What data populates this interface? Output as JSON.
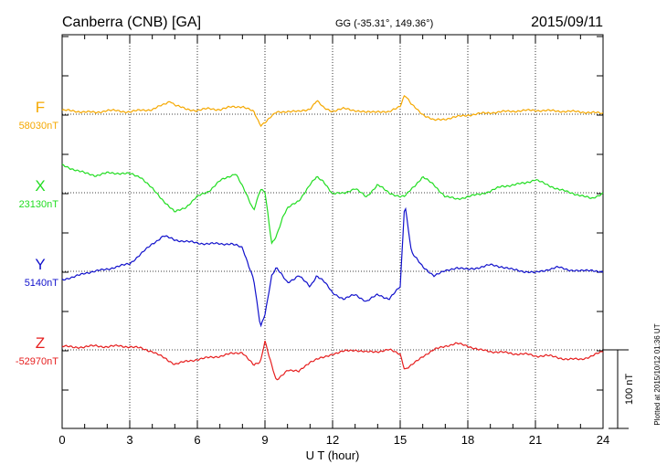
{
  "header": {
    "station": "Canberra (CNB)  [GA]",
    "coords": "GG (-35.31°, 149.36°)",
    "date": "2015/09/11"
  },
  "plotted_note": "Plotted at 2015/10/12 01:36 UT",
  "scale_label": "100 nT",
  "chart_data": {
    "type": "line",
    "xlabel": "U T (hour)",
    "xlim": [
      0,
      24
    ],
    "x_ticks": [
      "0",
      "3",
      "6",
      "9",
      "12",
      "15",
      "18",
      "21",
      "24"
    ],
    "y_unit": "nT",
    "grid": true,
    "series": [
      {
        "name": "F",
        "baseline_label": "58030nT",
        "baseline": 58030,
        "color": "#f5a800",
        "x": [
          0,
          0.5,
          1,
          1.5,
          2,
          2.5,
          3,
          3.5,
          4,
          4.5,
          4.8,
          5,
          5.5,
          6,
          6.5,
          7,
          7.5,
          8,
          8.5,
          8.8,
          9,
          9.5,
          10,
          10.5,
          11,
          11.3,
          11.6,
          12,
          12.5,
          13,
          13.5,
          14,
          14.5,
          15,
          15.2,
          15.5,
          16,
          16.5,
          17,
          18,
          19,
          20,
          21,
          22,
          23,
          24
        ],
        "values": [
          5,
          4,
          3,
          2,
          5,
          4,
          3,
          5,
          6,
          12,
          17,
          12,
          6,
          5,
          7,
          6,
          9,
          10,
          3,
          -14,
          -10,
          2,
          4,
          3,
          7,
          17,
          8,
          4,
          7,
          5,
          2,
          4,
          2,
          11,
          25,
          12,
          0,
          -8,
          -6,
          -1,
          2,
          4,
          5,
          4,
          3,
          1
        ]
      },
      {
        "name": "X",
        "baseline_label": "23130nT",
        "baseline": 23130,
        "color": "#22dd22",
        "x": [
          0,
          0.5,
          1,
          1.5,
          2,
          2.5,
          3,
          3.5,
          4,
          4.5,
          5,
          5.5,
          6,
          6.5,
          7,
          7.5,
          7.7,
          8,
          8.5,
          8.8,
          9,
          9.3,
          9.5,
          9.8,
          10,
          10.5,
          11,
          11.3,
          11.6,
          12,
          12.5,
          13,
          13.5,
          14,
          14.5,
          15,
          15.2,
          15.5,
          16,
          16.5,
          17,
          17.5,
          18,
          18.5,
          19,
          19.5,
          20,
          20.5,
          21,
          21.5,
          22,
          22.5,
          23,
          23.5,
          24
        ],
        "values": [
          35,
          30,
          25,
          22,
          25,
          25,
          24,
          20,
          5,
          -10,
          -25,
          -18,
          -5,
          2,
          15,
          22,
          25,
          8,
          -22,
          5,
          0,
          -65,
          -55,
          -30,
          -20,
          -10,
          10,
          20,
          15,
          -2,
          0,
          5,
          -5,
          10,
          0,
          -5,
          -5,
          5,
          20,
          10,
          -5,
          -8,
          -5,
          -2,
          2,
          8,
          10,
          12,
          17,
          10,
          5,
          0,
          -3,
          -8,
          0
        ]
      },
      {
        "name": "Y",
        "baseline_label": "5140nT",
        "baseline": 5140,
        "color": "#1111cc",
        "x": [
          0,
          0.5,
          1,
          1.5,
          2,
          2.5,
          3,
          3.5,
          4,
          4.5,
          5,
          5.5,
          6,
          6.5,
          7,
          7.5,
          8,
          8.5,
          8.8,
          9,
          9.3,
          9.5,
          10,
          10.5,
          11,
          11.3,
          11.6,
          12,
          12.5,
          13,
          13.5,
          14,
          14.5,
          15,
          15.2,
          15.5,
          16,
          16.5,
          17,
          17.5,
          18,
          18.5,
          19,
          19.5,
          20,
          20.5,
          21,
          21.5,
          22,
          22.5,
          23,
          23.5,
          24
        ],
        "values": [
          -10,
          -8,
          -2,
          0,
          3,
          6,
          10,
          22,
          35,
          45,
          40,
          38,
          36,
          35,
          35,
          35,
          30,
          -10,
          -72,
          -55,
          -5,
          5,
          -15,
          -5,
          -20,
          -5,
          -12,
          -28,
          -35,
          -30,
          -38,
          -30,
          -35,
          -20,
          88,
          25,
          5,
          -5,
          0,
          5,
          2,
          5,
          8,
          6,
          2,
          0,
          -2,
          2,
          5,
          2,
          0,
          2,
          -2
        ]
      },
      {
        "name": "Z",
        "baseline_label": "-52970nT",
        "baseline": -52970,
        "color": "#e61e1e",
        "x": [
          0,
          0.5,
          1,
          1.5,
          2,
          2.5,
          3,
          3.5,
          4,
          4.5,
          5,
          5.5,
          6,
          6.5,
          7,
          7.5,
          8,
          8.5,
          8.8,
          9,
          9.3,
          9.5,
          10,
          10.5,
          11,
          11.3,
          11.6,
          12,
          12.5,
          13,
          13.5,
          14,
          14.5,
          15,
          15.2,
          15.5,
          16,
          16.5,
          17,
          17.5,
          18,
          18.5,
          19,
          19.5,
          20,
          20.5,
          21,
          21.5,
          22,
          22.5,
          23,
          23.5,
          24
        ],
        "values": [
          5,
          3,
          4,
          5,
          4,
          5,
          4,
          2,
          -2,
          -10,
          -18,
          -15,
          -12,
          -10,
          -8,
          -5,
          -3,
          -20,
          -15,
          12,
          -20,
          -40,
          -25,
          -28,
          -15,
          -12,
          -10,
          -5,
          -2,
          0,
          -3,
          -2,
          0,
          -5,
          -25,
          -20,
          -8,
          0,
          5,
          8,
          5,
          0,
          -2,
          -3,
          -5,
          -5,
          -8,
          -7,
          -10,
          -12,
          -12,
          -8,
          -2
        ]
      }
    ]
  }
}
